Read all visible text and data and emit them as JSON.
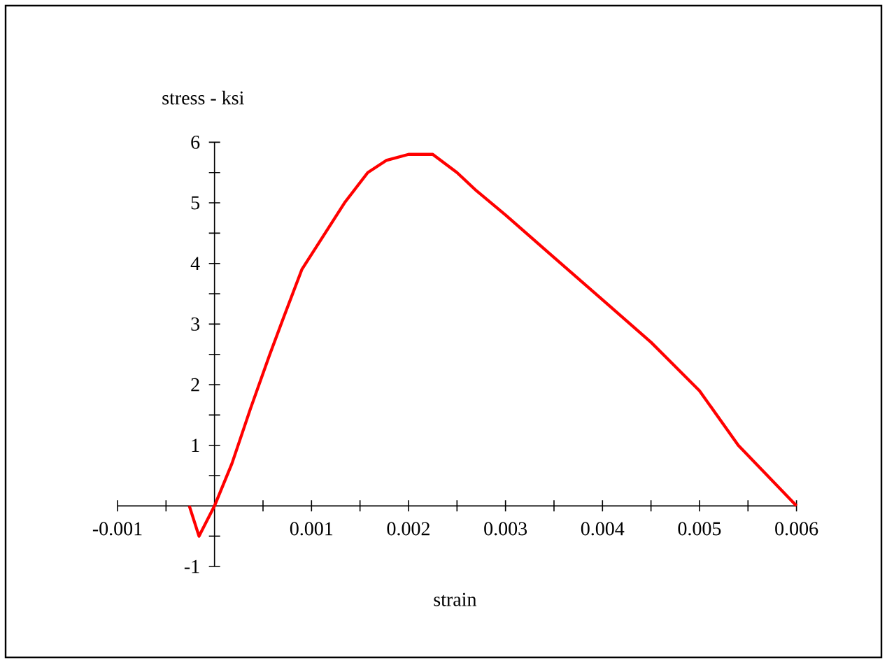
{
  "chart_data": {
    "type": "line",
    "xlabel": "strain",
    "ylabel": "stress - ksi",
    "color": "#ff0000",
    "x": [
      -0.00026,
      -0.00016,
      0,
      0.00018,
      0.00037,
      0.00057,
      0.00071,
      0.0009,
      0.0011,
      0.00134,
      0.00158,
      0.00177,
      0.002,
      0.00225,
      0.0025,
      0.0027,
      0.003,
      0.0035,
      0.004,
      0.0045,
      0.005,
      0.0054,
      0.006
    ],
    "values": [
      0,
      -0.5,
      0,
      0.7,
      1.6,
      2.5,
      3.1,
      3.9,
      4.4,
      5.0,
      5.5,
      5.7,
      5.8,
      5.8,
      5.5,
      5.2,
      4.8,
      4.1,
      3.4,
      2.7,
      1.9,
      1.0,
      0
    ],
    "xlim": [
      -0.001,
      0.006
    ],
    "ylim": [
      -1,
      6
    ],
    "xticks": [
      {
        "value": -0.001,
        "label": "-0.001"
      },
      {
        "value": -0.0005,
        "label": null
      },
      {
        "value": 0.0005,
        "label": null
      },
      {
        "value": 0.001,
        "label": "0.001"
      },
      {
        "value": 0.0015,
        "label": null
      },
      {
        "value": 0.002,
        "label": "0.002"
      },
      {
        "value": 0.0025,
        "label": null
      },
      {
        "value": 0.003,
        "label": "0.003"
      },
      {
        "value": 0.0035,
        "label": null
      },
      {
        "value": 0.004,
        "label": "0.004"
      },
      {
        "value": 0.0045,
        "label": null
      },
      {
        "value": 0.005,
        "label": "0.005"
      },
      {
        "value": 0.0055,
        "label": null
      },
      {
        "value": 0.006,
        "label": "0.006"
      }
    ],
    "yticks": [
      -1,
      {
        "value": -0.5,
        "label": null
      },
      {
        "value": 0.5,
        "label": null
      },
      1,
      {
        "value": 1.5,
        "label": null
      },
      2,
      {
        "value": 2.5,
        "label": null
      },
      3,
      {
        "value": 3.5,
        "label": null
      },
      4,
      {
        "value": 4.5,
        "label": null
      },
      5,
      {
        "value": 5.5,
        "label": null
      },
      6
    ]
  }
}
